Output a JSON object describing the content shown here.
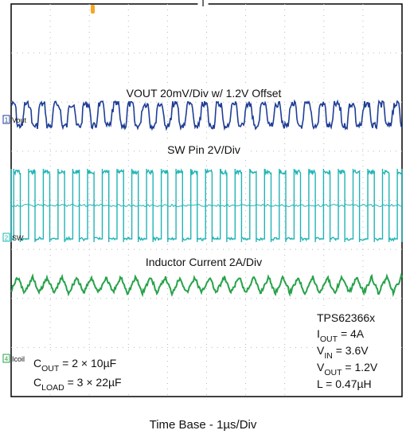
{
  "chart_data": {
    "type": "line",
    "title": "",
    "grid": true,
    "divisions": {
      "x": 10,
      "y": 8
    },
    "top_label": "I",
    "series": [
      {
        "name": "Vout",
        "marker_label": "1",
        "color": "#1f3e96",
        "waveform": "square-ripple",
        "annotation": "VOUT 20mV/Div w/ 1.2V Offset",
        "scale": "20mV/Div",
        "offset": "1.2V",
        "cycles": 26.5
      },
      {
        "name": "SW",
        "marker_label": "2",
        "color": "#22b3b5",
        "waveform": "square",
        "annotation": "SW Pin 2V/Div",
        "scale": "2V/Div",
        "cycles": 26.5
      },
      {
        "name": "Icoil",
        "marker_label": "4",
        "color": "#27a24a",
        "waveform": "triangle",
        "annotation": "Inductor Current 2A/Div",
        "scale": "2A/Div",
        "cycles": 26.5
      }
    ],
    "conditions": {
      "device": "TPS62366x",
      "lines": [
        {
          "sym": "I",
          "sub": "OUT",
          "val": " = 4A"
        },
        {
          "sym": "V",
          "sub": "IN",
          "val": " = 3.6V"
        },
        {
          "sym": "V",
          "sub": "OUT",
          "val": " = 1.2V"
        },
        {
          "sym": "L",
          "sub": "",
          "val": " = 0.47µH"
        }
      ]
    },
    "capacitors": [
      {
        "sym": "C",
        "sub": "OUT",
        "val": " = 2 × 10µF"
      },
      {
        "sym": "C",
        "sub": "LOAD",
        "val": " = 3 × 22µF"
      }
    ],
    "xlabel": "Time Base - 1µs/Div"
  },
  "colors": {
    "trigger_marker": "#f5a623"
  }
}
